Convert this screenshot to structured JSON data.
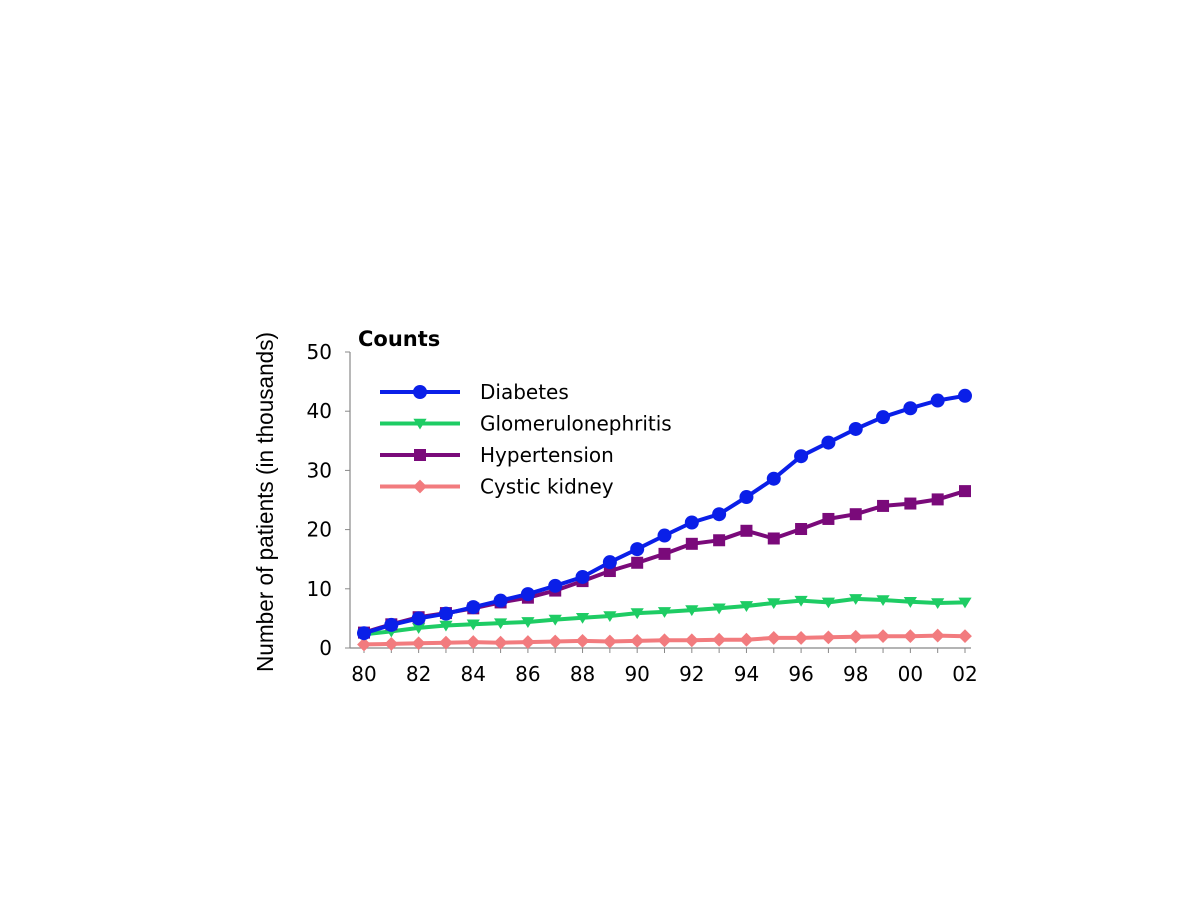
{
  "chart_data": {
    "type": "line",
    "title": "Counts",
    "xlabel": "",
    "ylabel": "Number of patients (in thousands)",
    "x": [
      "80",
      "81",
      "82",
      "83",
      "84",
      "85",
      "86",
      "87",
      "88",
      "89",
      "90",
      "91",
      "92",
      "93",
      "94",
      "95",
      "96",
      "97",
      "98",
      "99",
      "00",
      "01",
      "02"
    ],
    "x_tick_labels": [
      "80",
      "82",
      "84",
      "86",
      "88",
      "90",
      "92",
      "94",
      "96",
      "98",
      "00",
      "02"
    ],
    "ylim": [
      0,
      50
    ],
    "y_ticks": [
      0,
      10,
      20,
      30,
      40,
      50
    ],
    "grid": false,
    "legend_position": "top-left",
    "series": [
      {
        "name": "Diabetes",
        "color": "#0a1fe8",
        "marker": "circle",
        "values": [
          2.5,
          3.9,
          5.0,
          5.8,
          6.9,
          8.0,
          9.1,
          10.5,
          12.0,
          14.5,
          16.7,
          19.0,
          21.2,
          22.6,
          25.5,
          28.6,
          32.4,
          34.7,
          37.0,
          39.0,
          40.5,
          41.8,
          42.6
        ]
      },
      {
        "name": "Glomerulonephritis",
        "color": "#1ecc64",
        "marker": "triangle-down",
        "values": [
          2.3,
          2.8,
          3.4,
          3.8,
          4.0,
          4.2,
          4.4,
          4.8,
          5.1,
          5.4,
          5.9,
          6.1,
          6.4,
          6.7,
          7.1,
          7.6,
          8.0,
          7.7,
          8.3,
          8.1,
          7.8,
          7.6,
          7.7
        ]
      },
      {
        "name": "Hypertension",
        "color": "#7a0a7a",
        "marker": "square",
        "values": [
          2.6,
          4.0,
          5.2,
          5.9,
          6.7,
          7.7,
          8.5,
          9.7,
          11.3,
          13.0,
          14.4,
          15.9,
          17.6,
          18.2,
          19.8,
          18.5,
          20.1,
          21.8,
          22.6,
          24.0,
          24.4,
          25.1,
          26.5
        ]
      },
      {
        "name": "Cystic kidney",
        "color": "#f27b7e",
        "marker": "diamond",
        "values": [
          0.6,
          0.7,
          0.8,
          0.9,
          1.0,
          0.9,
          1.0,
          1.1,
          1.2,
          1.1,
          1.2,
          1.3,
          1.3,
          1.4,
          1.4,
          1.7,
          1.7,
          1.8,
          1.9,
          2.0,
          2.0,
          2.1,
          2.0
        ]
      }
    ]
  }
}
